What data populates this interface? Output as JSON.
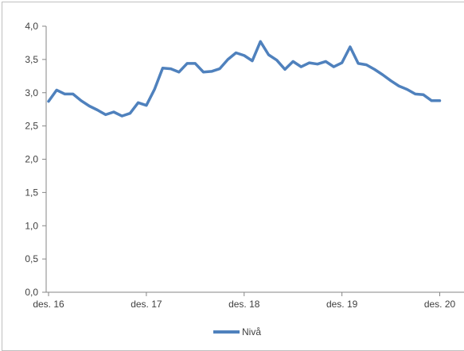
{
  "chart_data": {
    "type": "line",
    "x_tick_labels": [
      "des. 16",
      "des. 17",
      "des. 18",
      "des. 19",
      "des. 20"
    ],
    "y_tick_labels": [
      "0,0",
      "0,5",
      "1,0",
      "1,5",
      "2,0",
      "2,5",
      "3,0",
      "3,5",
      "4,0"
    ],
    "ylim": [
      0,
      4
    ],
    "grid": false,
    "legend": "bottom",
    "series": [
      {
        "name": "Nivå",
        "color": "#4f81bd",
        "values": [
          2.87,
          3.04,
          2.98,
          2.98,
          2.88,
          2.8,
          2.74,
          2.67,
          2.71,
          2.65,
          2.69,
          2.85,
          2.81,
          3.05,
          3.37,
          3.36,
          3.31,
          3.44,
          3.44,
          3.31,
          3.32,
          3.36,
          3.5,
          3.6,
          3.56,
          3.48,
          3.77,
          3.57,
          3.49,
          3.35,
          3.47,
          3.39,
          3.45,
          3.43,
          3.47,
          3.39,
          3.45,
          3.69,
          3.44,
          3.42,
          3.35,
          3.27,
          3.18,
          3.1,
          3.05,
          2.98,
          2.97,
          2.88,
          2.88
        ]
      }
    ]
  }
}
